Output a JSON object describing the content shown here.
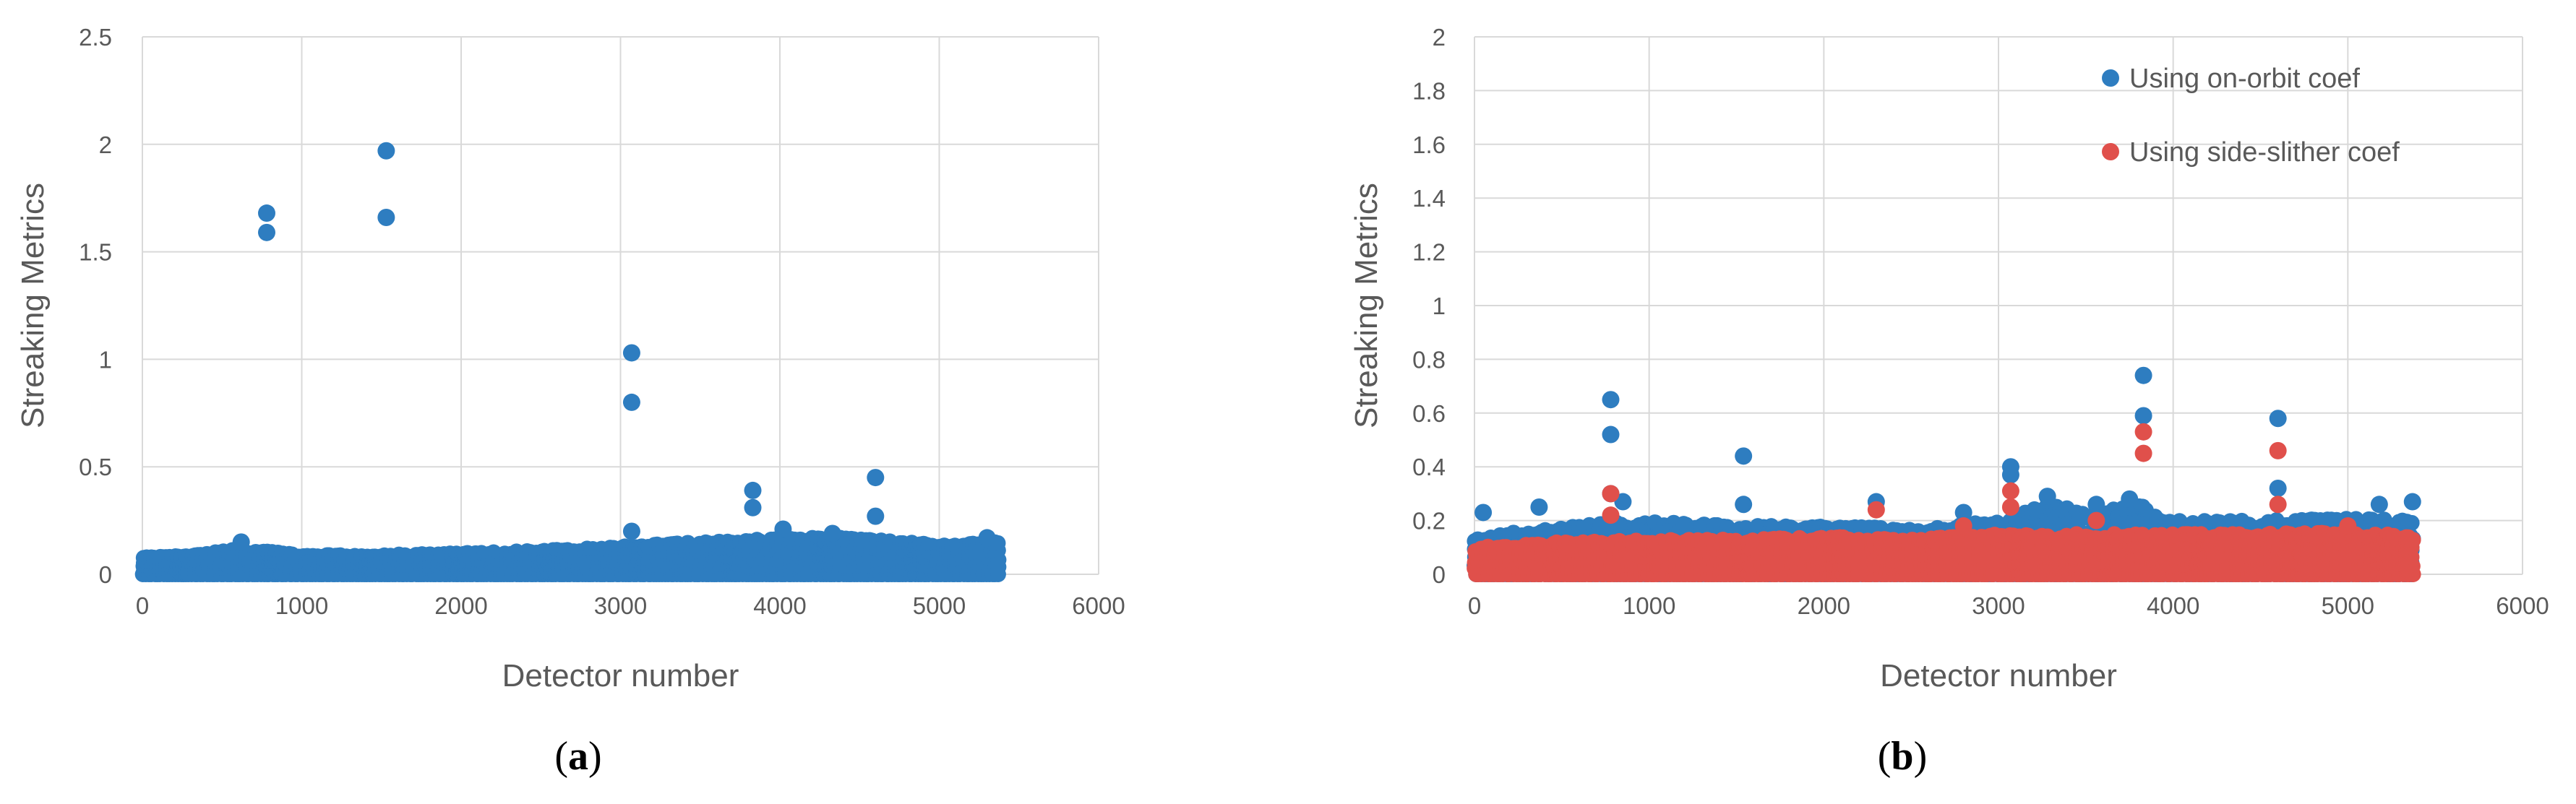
{
  "chart_data": [
    {
      "type": "scatter",
      "panel_label": "a",
      "xlabel": "Detector number",
      "ylabel": "Streaking Metrics",
      "xlim": [
        0,
        6000
      ],
      "ylim": [
        0,
        2.5
      ],
      "x_ticks": [
        0,
        1000,
        2000,
        3000,
        4000,
        5000,
        6000
      ],
      "y_ticks": [
        0,
        0.5,
        1,
        1.5,
        2,
        2.5
      ],
      "grid": true,
      "legend": null,
      "series": [
        {
          "color": "#2e7dc0",
          "baseline": {
            "x_range": [
              0,
              5380
            ],
            "envelope": [
              [
                0,
                0.08
              ],
              [
                300,
                0.09
              ],
              [
                600,
                0.12
              ],
              [
                1000,
                0.09
              ],
              [
                1500,
                0.09
              ],
              [
                2000,
                0.1
              ],
              [
                2500,
                0.11
              ],
              [
                3000,
                0.13
              ],
              [
                3500,
                0.15
              ],
              [
                4000,
                0.17
              ],
              [
                4400,
                0.17
              ],
              [
                5000,
                0.14
              ],
              [
                5380,
                0.15
              ]
            ]
          },
          "points": [
            {
              "x": 780,
              "y": 1.68
            },
            {
              "x": 780,
              "y": 1.59
            },
            {
              "x": 1530,
              "y": 1.97
            },
            {
              "x": 1530,
              "y": 1.66
            },
            {
              "x": 3070,
              "y": 1.03
            },
            {
              "x": 3070,
              "y": 0.8
            },
            {
              "x": 3070,
              "y": 0.2
            },
            {
              "x": 3830,
              "y": 0.39
            },
            {
              "x": 3830,
              "y": 0.31
            },
            {
              "x": 4600,
              "y": 0.45
            },
            {
              "x": 4600,
              "y": 0.27
            },
            {
              "x": 620,
              "y": 0.15
            },
            {
              "x": 4020,
              "y": 0.21
            },
            {
              "x": 4330,
              "y": 0.19
            },
            {
              "x": 5300,
              "y": 0.17
            }
          ]
        }
      ]
    },
    {
      "type": "scatter",
      "panel_label": "b",
      "xlabel": "Detector number",
      "ylabel": "Streaking Metrics",
      "xlim": [
        0,
        6000
      ],
      "ylim": [
        0,
        2
      ],
      "x_ticks": [
        0,
        1000,
        2000,
        3000,
        4000,
        5000,
        6000
      ],
      "y_ticks": [
        0,
        0.2,
        0.4,
        0.6,
        0.8,
        1,
        1.2,
        1.4,
        1.6,
        1.8,
        2
      ],
      "grid": true,
      "legend": "top-right",
      "series": [
        {
          "name": "Using on-orbit coef",
          "color": "#2e7dc0",
          "baseline": {
            "x_range": [
              0,
              5380
            ],
            "envelope": [
              [
                0,
                0.14
              ],
              [
                500,
                0.18
              ],
              [
                1000,
                0.2
              ],
              [
                1500,
                0.18
              ],
              [
                2000,
                0.18
              ],
              [
                2500,
                0.17
              ],
              [
                3000,
                0.2
              ],
              [
                3300,
                0.27
              ],
              [
                3500,
                0.22
              ],
              [
                3800,
                0.27
              ],
              [
                4000,
                0.2
              ],
              [
                4500,
                0.2
              ],
              [
                5000,
                0.21
              ],
              [
                5380,
                0.2
              ]
            ]
          },
          "points": [
            {
              "x": 780,
              "y": 0.65
            },
            {
              "x": 780,
              "y": 0.52
            },
            {
              "x": 780,
              "y": 0.3
            },
            {
              "x": 850,
              "y": 0.27
            },
            {
              "x": 1540,
              "y": 0.44
            },
            {
              "x": 1540,
              "y": 0.26
            },
            {
              "x": 3070,
              "y": 0.4
            },
            {
              "x": 3070,
              "y": 0.37
            },
            {
              "x": 3830,
              "y": 0.74
            },
            {
              "x": 3830,
              "y": 0.59
            },
            {
              "x": 4600,
              "y": 0.58
            },
            {
              "x": 4600,
              "y": 0.32
            },
            {
              "x": 50,
              "y": 0.23
            },
            {
              "x": 370,
              "y": 0.25
            },
            {
              "x": 2300,
              "y": 0.27
            },
            {
              "x": 2800,
              "y": 0.23
            },
            {
              "x": 3280,
              "y": 0.29
            },
            {
              "x": 3560,
              "y": 0.26
            },
            {
              "x": 3750,
              "y": 0.28
            },
            {
              "x": 5180,
              "y": 0.26
            },
            {
              "x": 5370,
              "y": 0.27
            }
          ]
        },
        {
          "name": "Using side-slither coef",
          "color": "#e0504b",
          "baseline": {
            "x_range": [
              0,
              5380
            ],
            "envelope": [
              [
                0,
                0.1
              ],
              [
                500,
                0.12
              ],
              [
                1000,
                0.13
              ],
              [
                1500,
                0.13
              ],
              [
                2000,
                0.14
              ],
              [
                2500,
                0.13
              ],
              [
                3000,
                0.15
              ],
              [
                3500,
                0.15
              ],
              [
                4000,
                0.15
              ],
              [
                4500,
                0.15
              ],
              [
                5000,
                0.16
              ],
              [
                5380,
                0.14
              ]
            ]
          },
          "points": [
            {
              "x": 780,
              "y": 0.3
            },
            {
              "x": 780,
              "y": 0.22
            },
            {
              "x": 3070,
              "y": 0.31
            },
            {
              "x": 3070,
              "y": 0.25
            },
            {
              "x": 3830,
              "y": 0.53
            },
            {
              "x": 3830,
              "y": 0.45
            },
            {
              "x": 4600,
              "y": 0.46
            },
            {
              "x": 4600,
              "y": 0.26
            },
            {
              "x": 2300,
              "y": 0.24
            },
            {
              "x": 2800,
              "y": 0.18
            },
            {
              "x": 3560,
              "y": 0.2
            },
            {
              "x": 5000,
              "y": 0.18
            }
          ]
        }
      ]
    }
  ],
  "captions": [
    {
      "open": "(",
      "letter": "a",
      "close": ")"
    },
    {
      "open": "(",
      "letter": "b",
      "close": ")"
    }
  ]
}
